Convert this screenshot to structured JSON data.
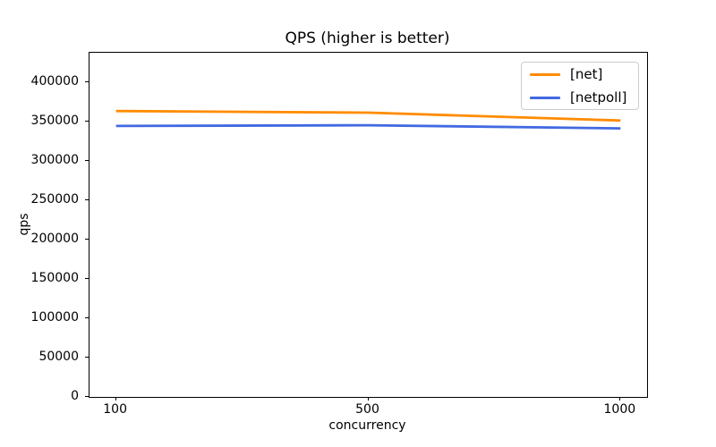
{
  "chart_data": {
    "type": "line",
    "title": "QPS (higher is better)",
    "xlabel": "concurrency",
    "ylabel": "qps",
    "categories": [
      "100",
      "500",
      "1000"
    ],
    "series": [
      {
        "name": "[net]",
        "color": "#ff8c00",
        "values": [
          363000,
          361000,
          351000
        ]
      },
      {
        "name": "[netpoll]",
        "color": "#4169e1",
        "values": [
          344000,
          345000,
          341000
        ]
      }
    ],
    "yticks": [
      0,
      50000,
      100000,
      150000,
      200000,
      250000,
      300000,
      350000,
      400000
    ],
    "ylim": [
      0,
      437000
    ],
    "x_margin_fraction": 0.0476,
    "grid": false,
    "legend_position": "upper right"
  }
}
